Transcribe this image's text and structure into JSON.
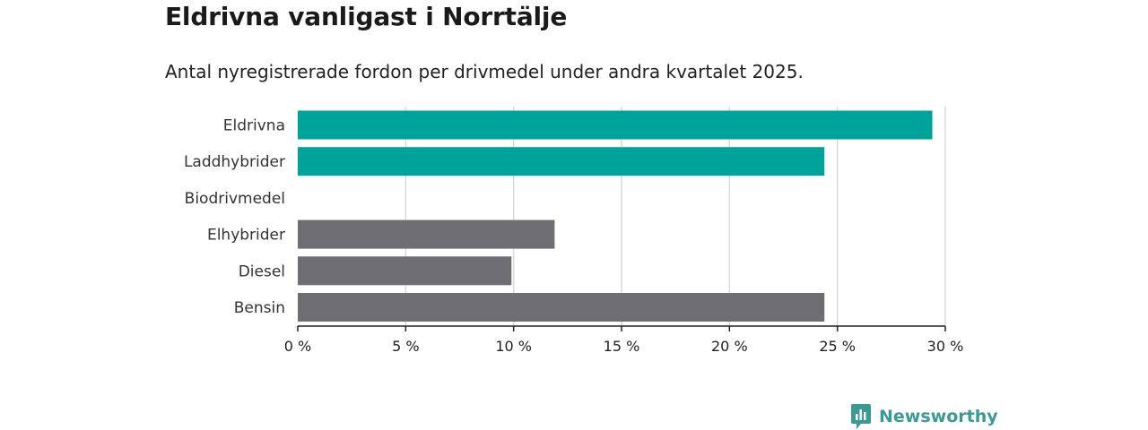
{
  "title": "Eldrivna vanligast i Norrtälje",
  "subtitle": "Antal nyregistrerade fordon per drivmedel under andra kvartalet 2025.",
  "brand": {
    "name": "Newsworthy",
    "color": "#3a9b96"
  },
  "colors": {
    "highlight": "#00a39a",
    "default": "#6e6d72",
    "grid": "#d9d9d9",
    "axis": "#222222"
  },
  "chart_data": {
    "type": "bar",
    "orientation": "horizontal",
    "categories": [
      "Eldrivna",
      "Laddhybrider",
      "Biodrivmedel",
      "Elhybrider",
      "Diesel",
      "Bensin"
    ],
    "values": [
      29.4,
      24.4,
      0,
      11.9,
      9.9,
      24.4
    ],
    "highlight": [
      true,
      true,
      false,
      false,
      false,
      false
    ],
    "xlim": [
      0,
      30
    ],
    "xticks": [
      0,
      5,
      10,
      15,
      20,
      25,
      30
    ],
    "xtick_labels": [
      "0 %",
      "5 %",
      "10 %",
      "15 %",
      "20 %",
      "25 %",
      "30 %"
    ],
    "unit": "%",
    "grid": true
  }
}
